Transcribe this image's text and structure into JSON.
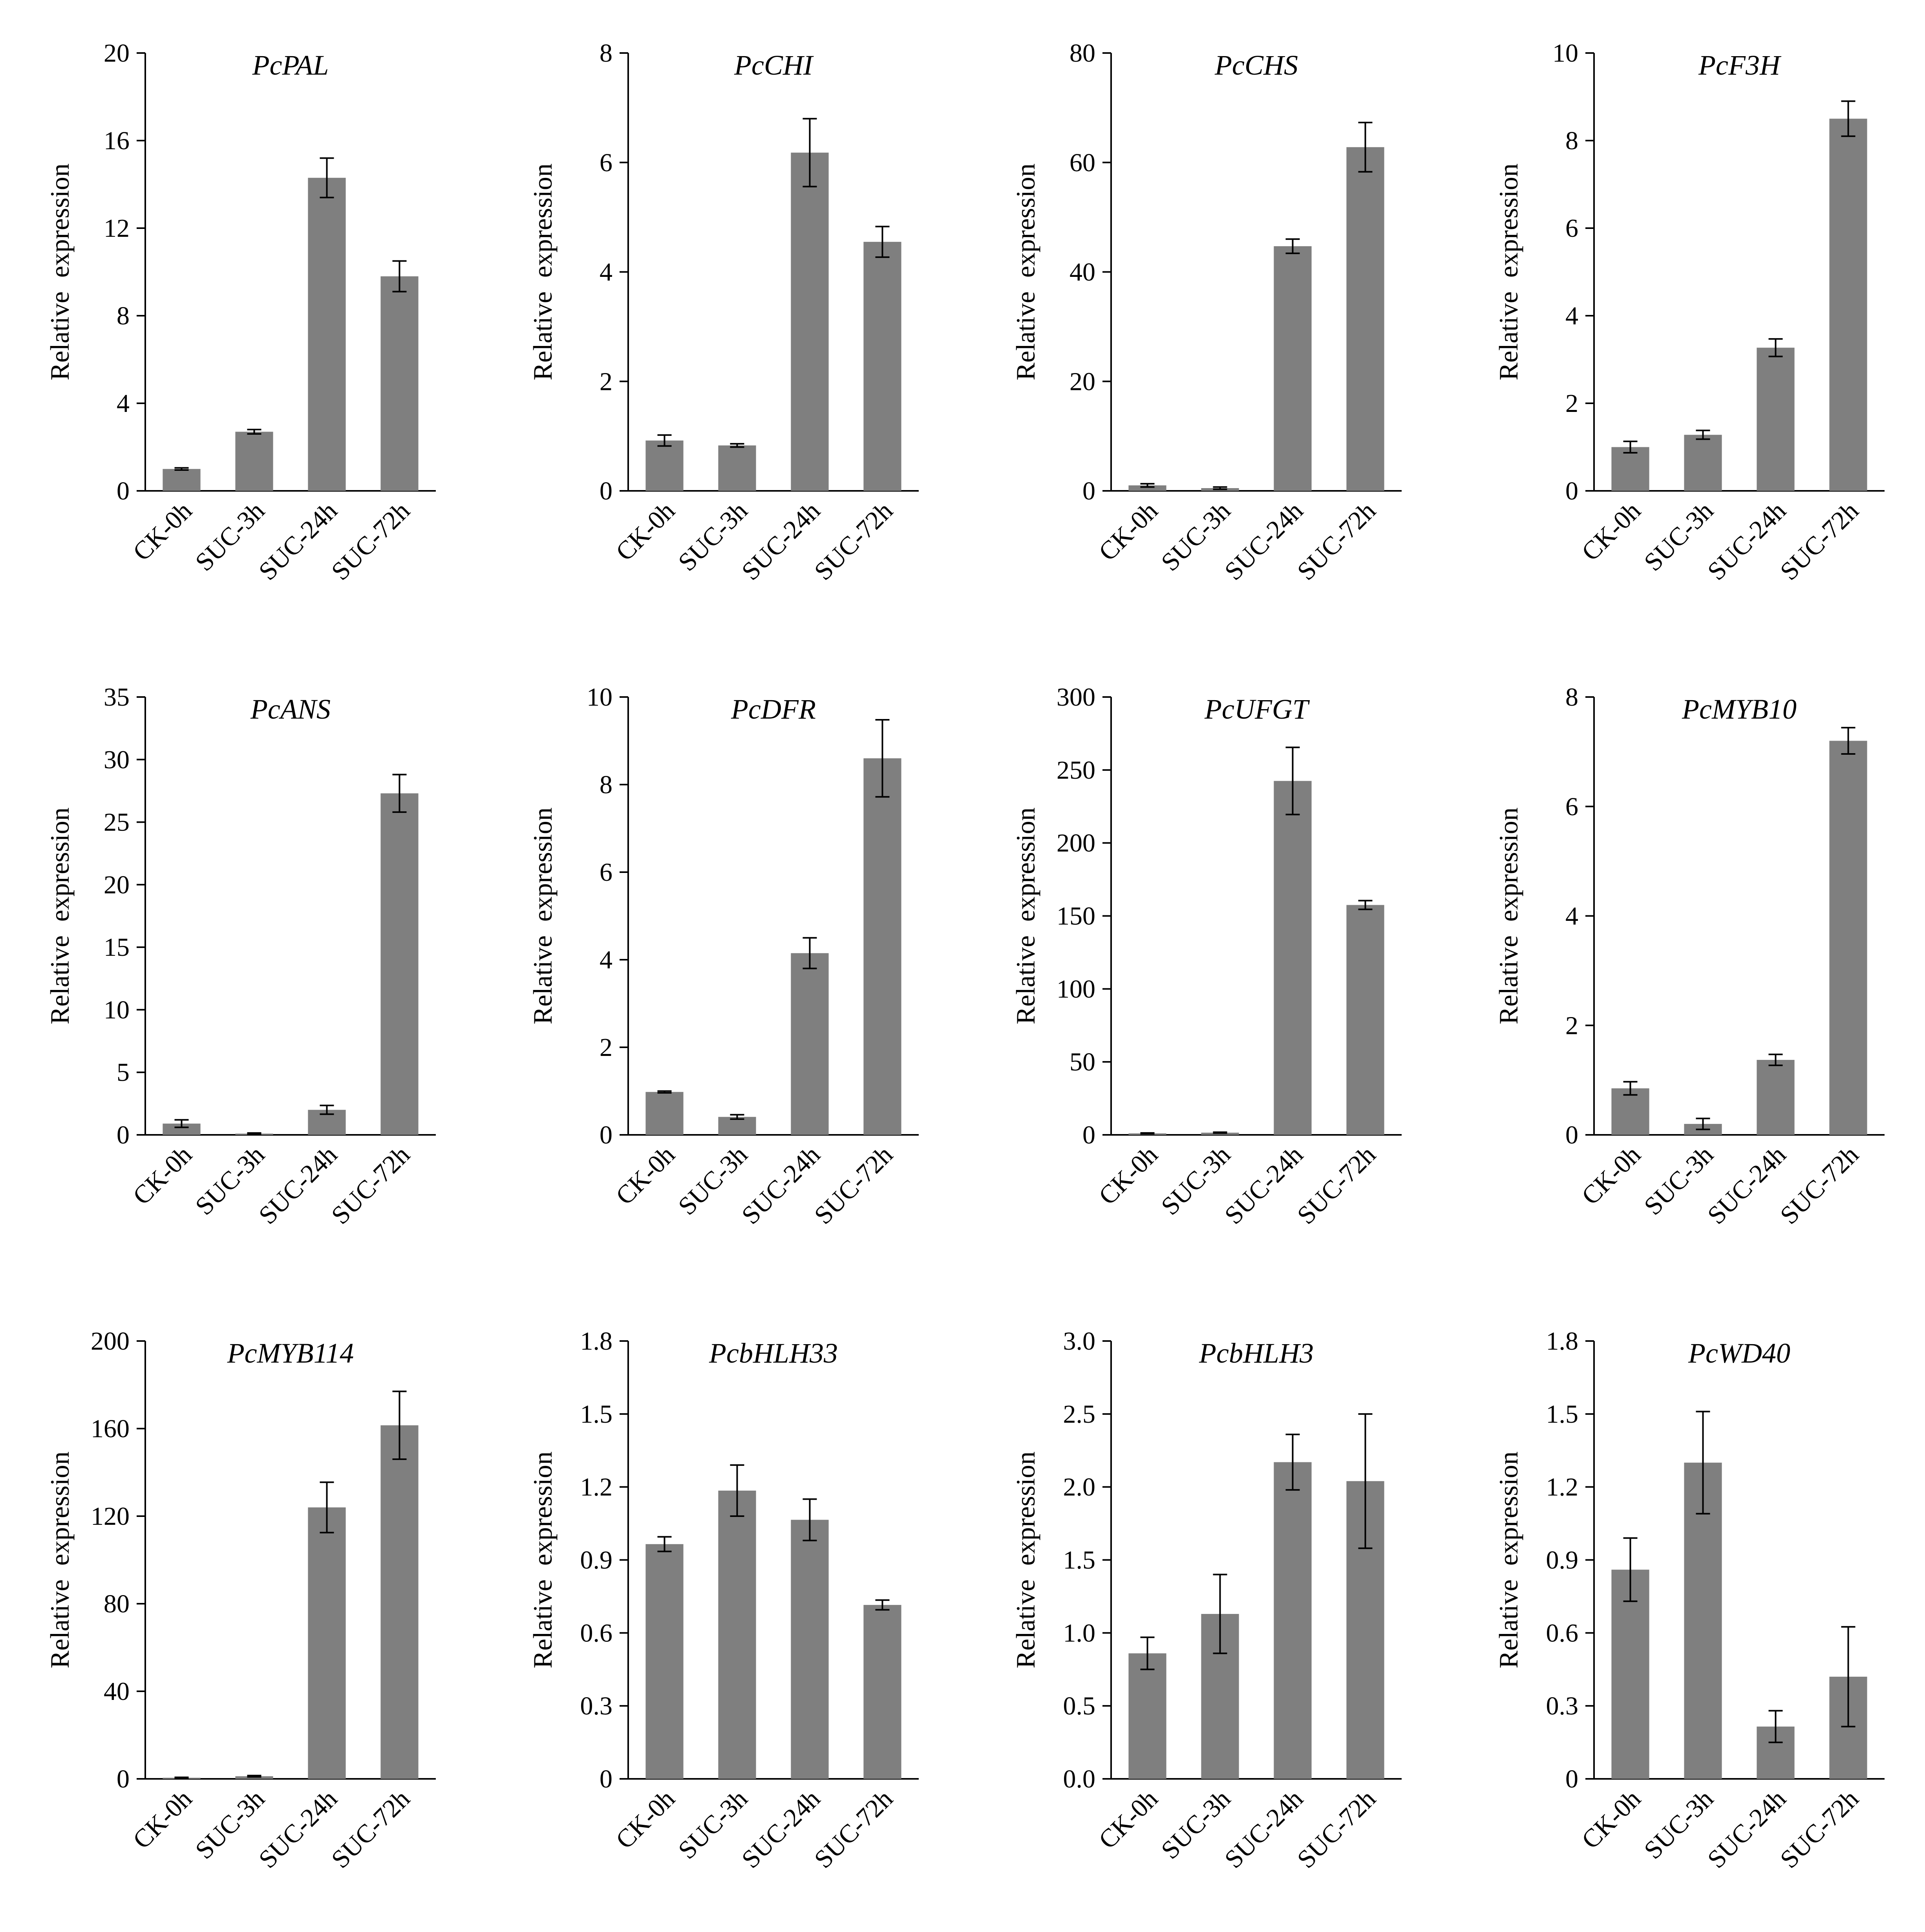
{
  "figure": {
    "ylabel": "Relative  expression",
    "bar_color": "#7f7f7f",
    "axis_color": "#000000"
  },
  "chart_data": [
    {
      "type": "bar",
      "title": "PcPAL",
      "ylabel": "Relative  expression",
      "categories": [
        "CK-0h",
        "SUC-3h",
        "SUC-24h",
        "SUC-72h"
      ],
      "values": [
        1.0,
        2.7,
        14.3,
        9.8
      ],
      "errors": [
        0.05,
        0.1,
        0.9,
        0.7
      ],
      "ylim": [
        0,
        20
      ],
      "yticks": [
        "0",
        "4",
        "8",
        "12",
        "16",
        "20"
      ]
    },
    {
      "type": "bar",
      "title": "PcCHI",
      "ylabel": "Relative  expression",
      "categories": [
        "CK-0h",
        "SUC-3h",
        "SUC-24h",
        "SUC-72h"
      ],
      "values": [
        0.92,
        0.83,
        6.18,
        4.55
      ],
      "errors": [
        0.1,
        0.03,
        0.62,
        0.28
      ],
      "ylim": [
        0,
        8
      ],
      "yticks": [
        "0",
        "2",
        "4",
        "6",
        "8"
      ]
    },
    {
      "type": "bar",
      "title": "PcCHS",
      "ylabel": "Relative  expression",
      "categories": [
        "CK-0h",
        "SUC-3h",
        "SUC-24h",
        "SUC-72h"
      ],
      "values": [
        1.0,
        0.5,
        44.7,
        62.8
      ],
      "errors": [
        0.3,
        0.2,
        1.3,
        4.5
      ],
      "ylim": [
        0,
        80
      ],
      "yticks": [
        "0",
        "20",
        "40",
        "60",
        "80"
      ]
    },
    {
      "type": "bar",
      "title": "PcF3H",
      "ylabel": "Relative  expression",
      "categories": [
        "CK-0h",
        "SUC-3h",
        "SUC-24h",
        "SUC-72h"
      ],
      "values": [
        1.0,
        1.28,
        3.27,
        8.5
      ],
      "errors": [
        0.13,
        0.1,
        0.2,
        0.4
      ],
      "ylim": [
        0,
        10
      ],
      "yticks": [
        "0",
        "2",
        "4",
        "6",
        "8",
        "10"
      ]
    },
    {
      "type": "bar",
      "title": "PcANS",
      "ylabel": "Relative  expression",
      "categories": [
        "CK-0h",
        "SUC-3h",
        "SUC-24h",
        "SUC-72h"
      ],
      "values": [
        0.9,
        0.1,
        2.0,
        27.3
      ],
      "errors": [
        0.3,
        0.05,
        0.35,
        1.5
      ],
      "ylim": [
        0,
        35
      ],
      "yticks": [
        "0",
        "5",
        "10",
        "15",
        "20",
        "25",
        "30",
        "35"
      ]
    },
    {
      "type": "bar",
      "title": "PcDFR",
      "ylabel": "Relative  expression",
      "categories": [
        "CK-0h",
        "SUC-3h",
        "SUC-24h",
        "SUC-72h"
      ],
      "values": [
        0.98,
        0.41,
        4.15,
        8.6
      ],
      "errors": [
        0.02,
        0.05,
        0.35,
        0.88
      ],
      "ylim": [
        0,
        10
      ],
      "yticks": [
        "0",
        "2",
        "4",
        "6",
        "8",
        "10"
      ]
    },
    {
      "type": "bar",
      "title": "PcUFGT",
      "ylabel": "Relative  expression",
      "categories": [
        "CK-0h",
        "SUC-3h",
        "SUC-24h",
        "SUC-72h"
      ],
      "values": [
        1.0,
        1.5,
        242.5,
        157.5
      ],
      "errors": [
        0.3,
        0.3,
        23,
        3
      ],
      "ylim": [
        0,
        300
      ],
      "yticks": [
        "0",
        "50",
        "100",
        "150",
        "200",
        "250",
        "300"
      ]
    },
    {
      "type": "bar",
      "title": "PcMYB10",
      "ylabel": "Relative  expression",
      "categories": [
        "CK-0h",
        "SUC-3h",
        "SUC-24h",
        "SUC-72h"
      ],
      "values": [
        0.85,
        0.2,
        1.37,
        7.2
      ],
      "errors": [
        0.12,
        0.1,
        0.1,
        0.24
      ],
      "ylim": [
        0,
        8
      ],
      "yticks": [
        "0",
        "2",
        "4",
        "6",
        "8"
      ]
    },
    {
      "type": "bar",
      "title": "PcMYB114",
      "ylabel": "Relative  expression",
      "categories": [
        "CK-0h",
        "SUC-3h",
        "SUC-24h",
        "SUC-72h"
      ],
      "values": [
        0.5,
        1.2,
        124,
        161.5
      ],
      "errors": [
        0.2,
        0.3,
        11.5,
        15.5
      ],
      "ylim": [
        0,
        200
      ],
      "yticks": [
        "0",
        "40",
        "80",
        "120",
        "160",
        "200"
      ]
    },
    {
      "type": "bar",
      "title": "PcbHLH33",
      "ylabel": "Relative  expression",
      "categories": [
        "CK-0h",
        "SUC-3h",
        "SUC-24h",
        "SUC-72h"
      ],
      "values": [
        0.965,
        1.185,
        1.065,
        0.715
      ],
      "errors": [
        0.03,
        0.105,
        0.085,
        0.02
      ],
      "ylim": [
        0,
        1.8
      ],
      "yticks": [
        "0",
        "0.3",
        "0.6",
        "0.9",
        "1.2",
        "1.5",
        "1.8"
      ]
    },
    {
      "type": "bar",
      "title": "PcbHLH3",
      "ylabel": "Relative  expression",
      "categories": [
        "CK-0h",
        "SUC-3h",
        "SUC-24h",
        "SUC-72h"
      ],
      "values": [
        0.86,
        1.13,
        2.17,
        2.04
      ],
      "errors": [
        0.11,
        0.27,
        0.19,
        0.46
      ],
      "ylim": [
        0,
        3
      ],
      "yticks": [
        "0.0",
        "0.5",
        "1.0",
        "1.5",
        "2.0",
        "2.5",
        "3.0"
      ]
    },
    {
      "type": "bar",
      "title": "PcWD40",
      "ylabel": "Relative  expression",
      "categories": [
        "CK-0h",
        "SUC-3h",
        "SUC-24h",
        "SUC-72h"
      ],
      "values": [
        0.86,
        1.3,
        0.215,
        0.42
      ],
      "errors": [
        0.13,
        0.21,
        0.065,
        0.205
      ],
      "ylim": [
        0,
        1.8
      ],
      "yticks": [
        "0",
        "0.3",
        "0.6",
        "0.9",
        "1.2",
        "1.5",
        "1.8"
      ]
    }
  ]
}
